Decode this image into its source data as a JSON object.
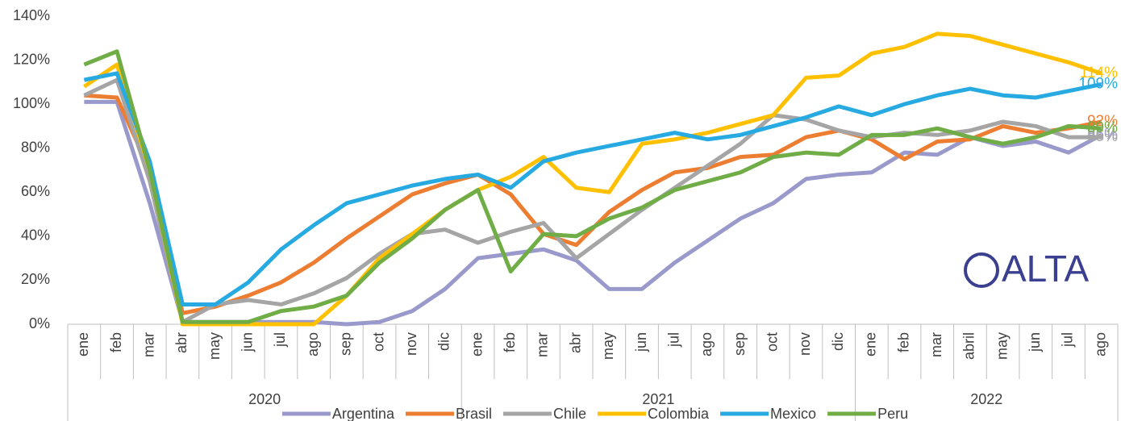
{
  "chart_data": {
    "type": "line",
    "categories": [
      "ene",
      "feb",
      "mar",
      "abr",
      "may",
      "jun",
      "jul",
      "ago",
      "sep",
      "oct",
      "nov",
      "dic",
      "ene",
      "feb",
      "mar",
      "abr",
      "may",
      "jun",
      "jul",
      "ago",
      "sep",
      "oct",
      "nov",
      "dic",
      "ene",
      "feb",
      "mar",
      "abril",
      "may",
      "jun",
      "jul",
      "ago"
    ],
    "years": [
      "2020",
      "2021",
      "2022"
    ],
    "ylim": [
      0,
      140
    ],
    "yticks": [
      {
        "value": 0,
        "label": "0%"
      },
      {
        "value": 20,
        "label": "20%"
      },
      {
        "value": 40,
        "label": "40%"
      },
      {
        "value": 60,
        "label": "60%"
      },
      {
        "value": 80,
        "label": "80%"
      },
      {
        "value": 100,
        "label": "100%"
      },
      {
        "value": 120,
        "label": "120%"
      },
      {
        "value": 140,
        "label": "140%"
      }
    ],
    "grid": false,
    "legend": "bottom",
    "logo": "ALTA",
    "series": [
      {
        "name": "Argentina",
        "color": "#9999cc",
        "values": [
          101,
          101,
          55,
          1,
          1,
          1,
          1,
          1,
          0,
          1,
          6,
          16,
          30,
          32,
          34,
          29,
          16,
          16,
          28,
          38,
          48,
          55,
          66,
          68,
          69,
          78,
          77,
          85,
          81,
          83,
          78,
          86
        ],
        "value_labels": [
          null,
          null,
          null,
          null,
          null,
          null,
          null,
          null,
          null,
          null,
          null,
          null,
          null,
          null,
          null,
          null,
          null,
          null,
          null,
          null,
          null,
          null,
          null,
          null,
          null,
          null,
          null,
          null,
          null,
          null,
          null,
          "86%"
        ]
      },
      {
        "name": "Brasil",
        "color": "#ed7d31",
        "values": [
          104,
          103,
          70,
          5,
          8,
          13,
          19,
          28,
          39,
          49,
          59,
          64,
          68,
          59,
          41,
          36,
          51,
          61,
          69,
          71,
          76,
          77,
          85,
          88,
          84,
          75,
          83,
          84,
          90,
          87,
          89,
          92
        ],
        "value_labels": [
          null,
          null,
          null,
          null,
          null,
          null,
          null,
          null,
          null,
          null,
          null,
          null,
          null,
          null,
          null,
          null,
          null,
          null,
          null,
          null,
          null,
          null,
          null,
          null,
          null,
          null,
          null,
          null,
          null,
          null,
          null,
          "92%"
        ]
      },
      {
        "name": "Chile",
        "color": "#a5a5a5",
        "values": [
          104,
          111,
          65,
          1,
          9,
          11,
          9,
          14,
          21,
          32,
          41,
          43,
          37,
          42,
          46,
          30,
          41,
          52,
          62,
          72,
          82,
          95,
          93,
          88,
          85,
          87,
          86,
          88,
          92,
          90,
          85,
          85
        ],
        "value_labels": [
          null,
          null,
          null,
          null,
          null,
          null,
          null,
          null,
          null,
          null,
          null,
          null,
          null,
          null,
          null,
          null,
          null,
          null,
          null,
          null,
          null,
          null,
          null,
          null,
          null,
          null,
          null,
          null,
          null,
          null,
          null,
          "85%"
        ]
      },
      {
        "name": "Colombia",
        "color": "#ffc000",
        "values": [
          108,
          118,
          70,
          0,
          0,
          0,
          0,
          0,
          13,
          30,
          41,
          52,
          61,
          67,
          76,
          62,
          60,
          82,
          84,
          87,
          91,
          95,
          112,
          113,
          123,
          126,
          132,
          131,
          127,
          123,
          119,
          114
        ],
        "value_labels": [
          null,
          null,
          null,
          null,
          null,
          null,
          null,
          null,
          null,
          null,
          null,
          null,
          null,
          null,
          null,
          null,
          null,
          null,
          null,
          null,
          null,
          null,
          null,
          null,
          null,
          null,
          null,
          null,
          null,
          null,
          null,
          "114%"
        ]
      },
      {
        "name": "Mexico",
        "color": "#27aae1",
        "values": [
          111,
          114,
          74,
          9,
          9,
          19,
          34,
          45,
          55,
          59,
          63,
          66,
          68,
          62,
          74,
          78,
          81,
          84,
          87,
          84,
          86,
          90,
          94,
          99,
          95,
          100,
          104,
          107,
          104,
          103,
          106,
          109
        ],
        "value_labels": [
          null,
          null,
          null,
          null,
          null,
          null,
          null,
          null,
          null,
          null,
          null,
          null,
          null,
          null,
          null,
          null,
          null,
          null,
          null,
          null,
          null,
          null,
          null,
          null,
          null,
          null,
          null,
          null,
          null,
          null,
          null,
          "109%"
        ]
      },
      {
        "name": "Peru",
        "color": "#70ad47",
        "values": [
          118,
          124,
          70,
          1,
          1,
          1,
          6,
          8,
          13,
          28,
          39,
          52,
          61,
          24,
          41,
          40,
          48,
          53,
          61,
          65,
          69,
          76,
          78,
          77,
          86,
          86,
          89,
          85,
          82,
          85,
          90,
          89
        ],
        "value_labels": [
          null,
          null,
          null,
          null,
          null,
          null,
          null,
          null,
          null,
          null,
          null,
          null,
          null,
          null,
          null,
          null,
          null,
          null,
          null,
          null,
          null,
          null,
          null,
          null,
          null,
          null,
          null,
          null,
          null,
          null,
          null,
          "89%"
        ]
      }
    ]
  }
}
